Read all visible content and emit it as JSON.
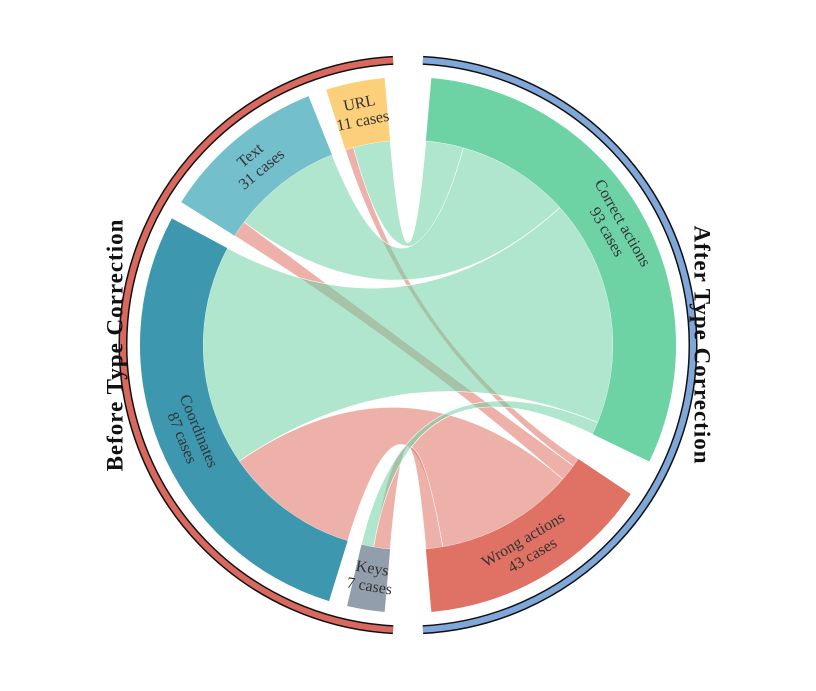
{
  "chart_data": {
    "type": "chord",
    "left_title": "Before Type Correction",
    "right_title": "After Type Correction",
    "left_color": "#d9685e",
    "right_color": "#7fa7d9",
    "sources": {
      "categories": [
        "URL",
        "Text",
        "Coordinates",
        "Keys"
      ],
      "values": [
        11,
        31,
        87,
        7
      ],
      "value_labels": [
        "11 cases",
        "31 cases",
        "87 cases",
        "7 cases"
      ],
      "colors": [
        "#fcd07a",
        "#74bfcc",
        "#3d97ae",
        "#939eac"
      ]
    },
    "targets": {
      "categories": [
        "Correct actions",
        "Wrong actions"
      ],
      "values": [
        93,
        43
      ],
      "value_labels": [
        "93 cases",
        "43 cases"
      ],
      "colors": [
        "#6dd2a4",
        "#df7165"
      ]
    },
    "flows": {
      "values": [
        [
          9,
          2
        ],
        [
          27,
          4
        ],
        [
          54,
          33
        ],
        [
          3,
          4
        ]
      ]
    }
  }
}
